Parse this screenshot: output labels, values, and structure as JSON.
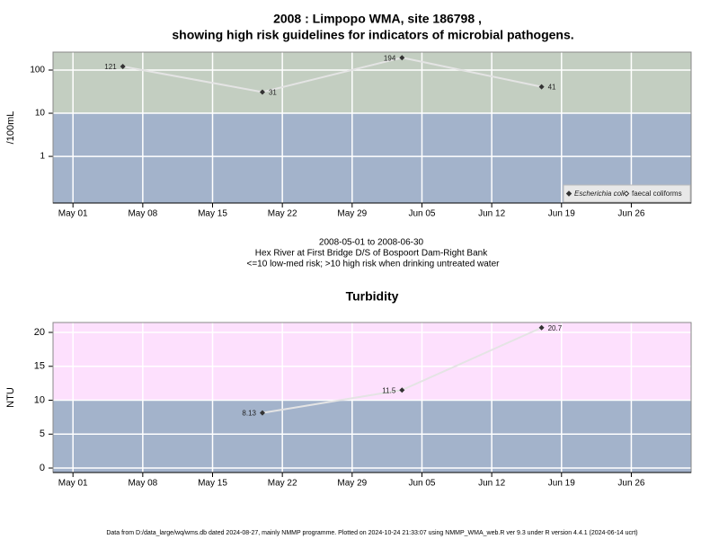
{
  "chart_data": [
    {
      "type": "line",
      "title": "2008 : Limpopo WMA, site 186798 ,",
      "subtitle": "showing high risk guidelines for indicators of microbial pathogens.",
      "y_label": "/100mL",
      "log_scale": true,
      "grid": true,
      "legend_position": "bottom-right",
      "x": [
        "May 06",
        "May 20",
        "Jun 03",
        "Jun 17"
      ],
      "xlim": [
        "Apr 29",
        "Jul 02"
      ],
      "xticks": [
        "May 01",
        "May 08",
        "May 15",
        "May 22",
        "May 29",
        "Jun 05",
        "Jun 12",
        "Jun 19",
        "Jun 26"
      ],
      "ylim": [
        0.083,
        261
      ],
      "yticks": [
        1,
        10,
        100
      ],
      "threshold": 10,
      "band_colors": {
        "above": "#c3cec1",
        "below": "#a3b3cb"
      },
      "line_color": "#e4e4e4",
      "series": [
        {
          "name": "Escherichia coli",
          "color": "#333333",
          "values": [
            121,
            31,
            194,
            41
          ]
        },
        {
          "name": "faecal coliforms",
          "color": "#333333",
          "values": [
            null,
            null,
            null,
            null
          ]
        }
      ],
      "annotations": [
        "2008-05-01 to 2008-06-30",
        "Hex River at First Bridge D/S of Bospoort Dam-Right Bank",
        "<=10 low-med risk; >10 high risk when drinking untreated water"
      ]
    },
    {
      "type": "line",
      "title": "Turbidity",
      "y_label": "NTU",
      "log_scale": false,
      "grid": true,
      "x": [
        "May 20",
        "Jun 03",
        "Jun 17"
      ],
      "xlim": [
        "Apr 29",
        "Jul 02"
      ],
      "xticks": [
        "May 01",
        "May 08",
        "May 15",
        "May 22",
        "May 29",
        "Jun 05",
        "Jun 12",
        "Jun 19",
        "Jun 26"
      ],
      "ylim": [
        -0.66,
        21.46
      ],
      "yticks": [
        0,
        5,
        10,
        15,
        20
      ],
      "threshold": 10,
      "band_colors": {
        "above": "#fde0fd",
        "below": "#a3b3cb"
      },
      "line_color": "#e4e4e4",
      "series": [
        {
          "name": "Turbidity",
          "color": "#333333",
          "values": [
            8.13,
            11.5,
            20.7
          ]
        }
      ]
    }
  ],
  "footer": "Data from D:/data_large/wq/wms.db dated 2024-08-27, mainly NMMP programme. Plotted on 2024-10-24 21:33:07 using NMMP_WMA_web.R ver 9.3 under R version 4.4.1 (2024-06-14 ucrt)"
}
